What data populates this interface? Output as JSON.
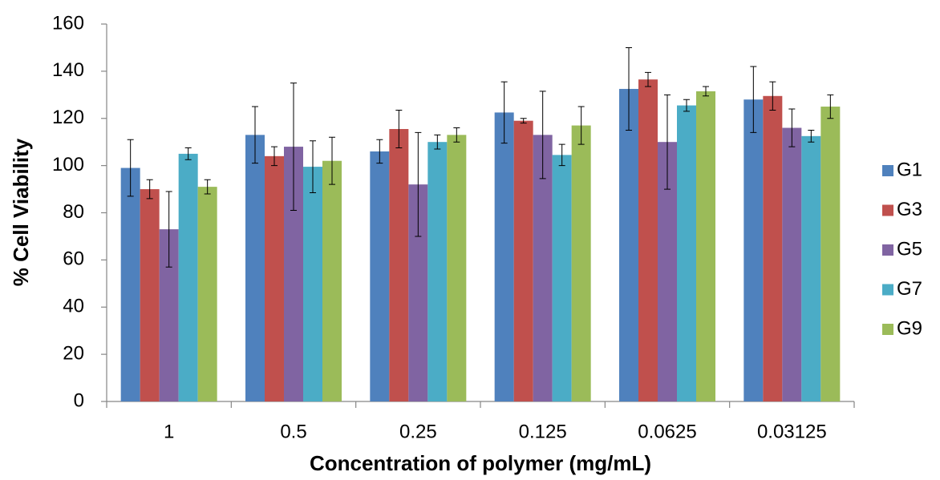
{
  "chart_data": {
    "type": "bar",
    "x_label": "Concentration of polymer (mg/mL)",
    "y_label": "% Cell Viability",
    "categories": [
      "1",
      "0.5",
      "0.25",
      "0.125",
      "0.0625",
      "0.03125"
    ],
    "series": [
      {
        "name": "G1",
        "color": "#4f81bd",
        "values": [
          99,
          113,
          106,
          122.5,
          132.5,
          128
        ],
        "errors": [
          12,
          12,
          5,
          13,
          17.5,
          14
        ]
      },
      {
        "name": "G3",
        "color": "#c0504d",
        "values": [
          90,
          104,
          115.5,
          119,
          136.5,
          129.5
        ],
        "errors": [
          4,
          4,
          8,
          1,
          3,
          6
        ]
      },
      {
        "name": "G5",
        "color": "#8064a2",
        "values": [
          73,
          108,
          92,
          113,
          110,
          116
        ],
        "errors": [
          16,
          27,
          22,
          18.5,
          20,
          8
        ]
      },
      {
        "name": "G7",
        "color": "#4bacc6",
        "values": [
          105,
          99.5,
          110,
          104.5,
          125.5,
          112.5
        ],
        "errors": [
          2.5,
          11,
          3,
          4.5,
          2.5,
          2.5
        ]
      },
      {
        "name": "G9",
        "color": "#9bbb59",
        "values": [
          91,
          102,
          113,
          117,
          131.5,
          125
        ],
        "errors": [
          3,
          10,
          3,
          8,
          2,
          5
        ]
      }
    ],
    "ylim": [
      0,
      160
    ],
    "yticks": [
      0,
      20,
      40,
      60,
      80,
      100,
      120,
      140,
      160
    ],
    "legend": "right"
  }
}
